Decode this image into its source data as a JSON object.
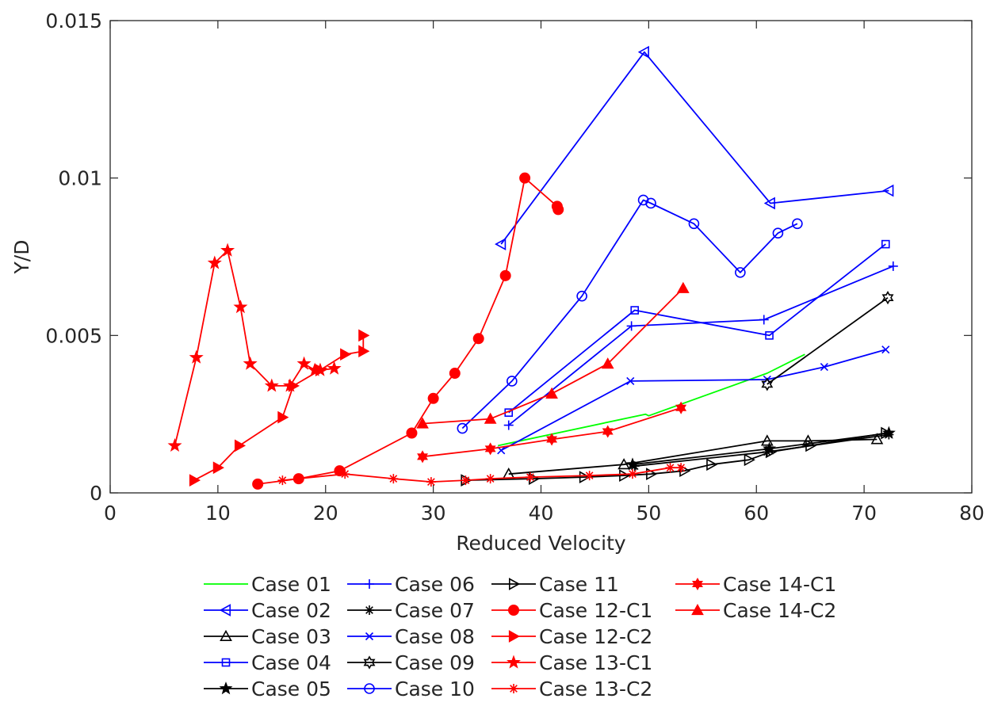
{
  "chart_data": {
    "type": "line",
    "title": "",
    "xlabel": "Reduced Velocity",
    "ylabel": "Y/D",
    "xlim": [
      0,
      80
    ],
    "ylim": [
      0,
      0.015
    ],
    "xticks": [
      0,
      10,
      20,
      30,
      40,
      50,
      60,
      70,
      80
    ],
    "xtick_labels": [
      "0",
      "10",
      "20",
      "30",
      "40",
      "50",
      "60",
      "70",
      "80"
    ],
    "yticks": [
      0,
      0.005,
      0.01,
      0.015
    ],
    "ytick_labels": [
      "0",
      "0.005",
      "0.01",
      "0.015"
    ],
    "grid": false,
    "legend_position": "bottom",
    "series": [
      {
        "name": "Case 01",
        "color": "#00ff00",
        "marker": "none",
        "x": [
          36.0,
          49.7,
          50.0,
          61.0,
          64.5
        ],
        "y": [
          0.0015,
          0.0025,
          0.00245,
          0.0038,
          0.0044
        ]
      },
      {
        "name": "Case 02",
        "color": "#0000ff",
        "marker": "triangle-left",
        "x": [
          36.3,
          49.6,
          61.3,
          72.3
        ],
        "y": [
          0.0079,
          0.014,
          0.0092,
          0.0096
        ]
      },
      {
        "name": "Case 03",
        "color": "#000000",
        "marker": "triangle-up",
        "x": [
          37.0,
          47.7,
          61.0,
          64.8,
          71.2
        ],
        "y": [
          0.0006,
          0.0009,
          0.00165,
          0.00165,
          0.0017
        ]
      },
      {
        "name": "Case 04",
        "color": "#0000ff",
        "marker": "square",
        "x": [
          37.0,
          48.7,
          61.2,
          72.0
        ],
        "y": [
          0.00255,
          0.0058,
          0.005,
          0.0079
        ]
      },
      {
        "name": "Case 05",
        "color": "#000000",
        "marker": "star",
        "x": [
          48.5,
          61.2,
          72.3
        ],
        "y": [
          0.0009,
          0.0014,
          0.0019
        ]
      },
      {
        "name": "Case 06",
        "color": "#0000ff",
        "marker": "plus",
        "x": [
          37.0,
          48.4,
          60.7,
          72.7
        ],
        "y": [
          0.00215,
          0.0053,
          0.0055,
          0.0072
        ]
      },
      {
        "name": "Case 07",
        "color": "#000000",
        "marker": "asterisk",
        "x": [
          48.7,
          61.0,
          72.3
        ],
        "y": [
          0.00085,
          0.0013,
          0.00185
        ]
      },
      {
        "name": "Case 08",
        "color": "#0000ff",
        "marker": "x",
        "x": [
          36.3,
          48.3,
          61.0,
          66.3,
          72.0
        ],
        "y": [
          0.00135,
          0.00355,
          0.0036,
          0.004,
          0.00455
        ]
      },
      {
        "name": "Case 09",
        "color": "#000000",
        "marker": "hexagram",
        "x": [
          61.0,
          72.2
        ],
        "y": [
          0.00345,
          0.0062
        ]
      },
      {
        "name": "Case 10",
        "color": "#0000ff",
        "marker": "circle",
        "x": [
          32.7,
          37.3,
          43.8,
          49.5,
          50.2,
          54.2,
          58.5,
          62.0,
          63.8
        ],
        "y": [
          0.00205,
          0.00355,
          0.00625,
          0.0093,
          0.0092,
          0.00855,
          0.007,
          0.00825,
          0.00855
        ]
      },
      {
        "name": "Case 11",
        "color": "#000000",
        "marker": "triangle-right",
        "x": [
          33.0,
          39.3,
          44.0,
          47.7,
          50.2,
          53.3,
          55.8,
          59.3,
          61.3,
          65.0,
          72.0
        ],
        "y": [
          0.0004,
          0.00045,
          0.0005,
          0.00055,
          0.0006,
          0.0007,
          0.0009,
          0.00105,
          0.0013,
          0.0015,
          0.0019
        ]
      },
      {
        "name": "Case 12-C1",
        "color": "#ff0000",
        "marker": "circle-filled",
        "x": [
          13.7,
          17.5,
          21.3,
          28.0,
          30.0,
          32.0,
          34.2,
          36.7,
          38.5,
          41.5,
          41.6
        ],
        "y": [
          0.00028,
          0.00045,
          0.0007,
          0.0019,
          0.003,
          0.0038,
          0.0049,
          0.0069,
          0.01,
          0.0091,
          0.009
        ]
      },
      {
        "name": "Case 12-C2",
        "color": "#ff0000",
        "marker": "triangle-right-filled",
        "x": [
          7.8,
          10.0,
          12.0,
          16.0,
          17.0,
          19.5,
          21.8,
          23.5,
          23.5
        ],
        "y": [
          0.0004,
          0.0008,
          0.0015,
          0.0024,
          0.0034,
          0.0039,
          0.0044,
          0.0045,
          0.005
        ]
      },
      {
        "name": "Case 13-C1",
        "color": "#ff0000",
        "marker": "star-filled",
        "x": [
          6.0,
          8.0,
          9.7,
          10.9,
          12.1,
          13.0,
          15.0,
          16.7,
          18.0,
          19.0,
          19.5,
          20.8
        ],
        "y": [
          0.0015,
          0.0043,
          0.0073,
          0.0077,
          0.0059,
          0.0041,
          0.0034,
          0.0034,
          0.0041,
          0.0039,
          0.0039,
          0.00395
        ]
      },
      {
        "name": "Case 13-C2",
        "color": "#ff0000",
        "marker": "asterisk",
        "x": [
          16.0,
          21.8,
          26.3,
          29.8,
          33.0,
          35.3,
          39.0,
          44.5,
          48.5,
          52.0,
          53.0
        ],
        "y": [
          0.0004,
          0.0006,
          0.00045,
          0.00035,
          0.0004,
          0.00045,
          0.0005,
          0.00055,
          0.0006,
          0.0008,
          0.0008
        ]
      },
      {
        "name": "Case 14-C1",
        "color": "#ff0000",
        "marker": "hexagram-filled",
        "x": [
          29.0,
          35.3,
          41.0,
          46.2,
          53.0
        ],
        "y": [
          0.00115,
          0.0014,
          0.0017,
          0.00195,
          0.0027
        ]
      },
      {
        "name": "Case 14-C2",
        "color": "#ff0000",
        "marker": "triangle-up-filled",
        "x": [
          29.0,
          35.3,
          41.0,
          46.2,
          53.2
        ],
        "y": [
          0.0022,
          0.00235,
          0.00315,
          0.0041,
          0.0065
        ]
      }
    ]
  }
}
